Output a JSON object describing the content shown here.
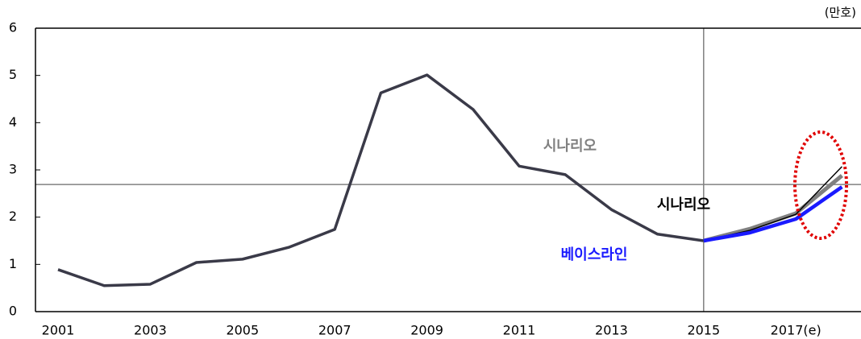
{
  "chart_data": {
    "type": "line",
    "unit": "(만호)",
    "categories": [
      "2001",
      null,
      "2003",
      null,
      "2005",
      null,
      "2007",
      null,
      "2009",
      null,
      "2011",
      null,
      "2013",
      null,
      "2015",
      null,
      "2017(e)",
      null
    ],
    "series": [
      {
        "color": "#3a3a48",
        "values": [
          0.89,
          0.55,
          0.58,
          1.04,
          1.11,
          1.36,
          1.74,
          4.63,
          5.01,
          4.28,
          3.08,
          2.9,
          2.16,
          1.64,
          1.5,
          null,
          null,
          null
        ]
      },
      {
        "name": "시나리오",
        "color": "#808080",
        "values": [
          null,
          null,
          null,
          null,
          null,
          null,
          null,
          null,
          null,
          null,
          null,
          null,
          null,
          null,
          1.5,
          1.75,
          2.08,
          2.88
        ]
      },
      {
        "name": "시나리오",
        "color": "#000000",
        "values": [
          null,
          null,
          null,
          null,
          null,
          null,
          null,
          null,
          null,
          null,
          null,
          null,
          null,
          null,
          1.5,
          1.72,
          2.06,
          3.07
        ]
      },
      {
        "name": "베이스라인",
        "color": "#1a1aff",
        "values": [
          null,
          null,
          null,
          null,
          null,
          null,
          null,
          null,
          null,
          null,
          null,
          null,
          null,
          null,
          1.5,
          1.67,
          1.96,
          2.64
        ]
      }
    ],
    "ylim": [
      0,
      6
    ],
    "yticks": [
      0,
      1,
      2,
      3,
      4,
      5,
      6
    ],
    "hline": 2.69,
    "vline": "2015"
  }
}
